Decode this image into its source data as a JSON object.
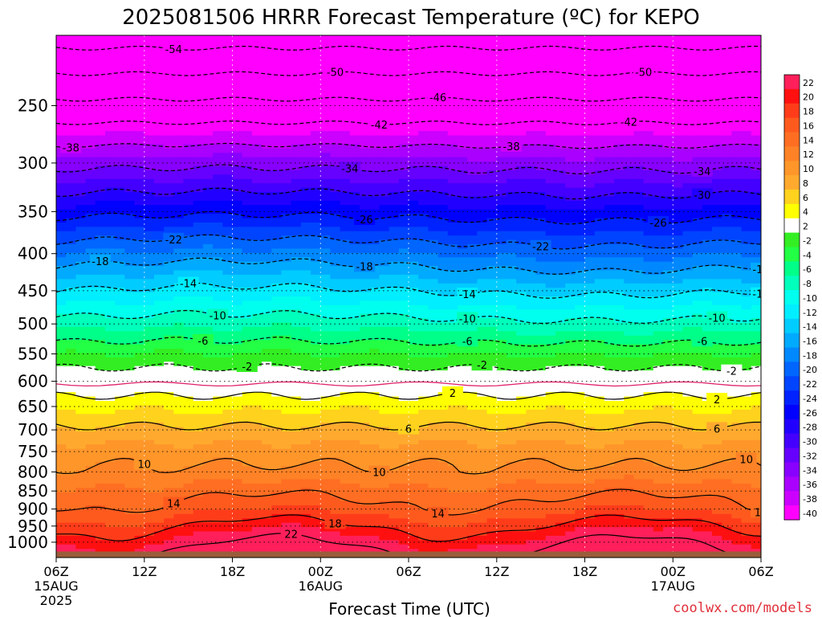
{
  "title": "2025081506 HRRR Forecast Temperature (ºC) for KEPO",
  "xlabel": "Forecast Time (UTC)",
  "credit": "coolwx.com/models",
  "colors": {
    "ground": "#9a5c3a",
    "freezing_line": "#e0206a",
    "dotted_line": "#000000",
    "dashed_grid": "#ffffff"
  },
  "chart_data": {
    "type": "heatmap",
    "title": "2025081506 HRRR Forecast Temperature (ºC) for KEPO",
    "xlabel": "Forecast Time (UTC)",
    "ylabel": "",
    "x_ticks": [
      {
        "label": "06Z",
        "sub": [
          "15AUG",
          "2025"
        ]
      },
      {
        "label": "12Z",
        "sub": []
      },
      {
        "label": "18Z",
        "sub": []
      },
      {
        "label": "00Z",
        "sub": [
          "16AUG"
        ]
      },
      {
        "label": "06Z",
        "sub": []
      },
      {
        "label": "12Z",
        "sub": []
      },
      {
        "label": "18Z",
        "sub": []
      },
      {
        "label": "00Z",
        "sub": [
          "17AUG"
        ]
      },
      {
        "label": "06Z",
        "sub": []
      }
    ],
    "forecast_hours": [
      0,
      6,
      12,
      18,
      24,
      30,
      36,
      42,
      48
    ],
    "y_ticks": [
      250,
      300,
      350,
      400,
      450,
      500,
      550,
      600,
      650,
      700,
      750,
      800,
      850,
      900,
      950,
      1000
    ],
    "ylim": [
      1050,
      200
    ],
    "y_scale": "log",
    "colorbar_labels": [
      22,
      20,
      18,
      16,
      14,
      12,
      10,
      8,
      6,
      4,
      2,
      -2,
      -4,
      -6,
      -8,
      -10,
      -12,
      -14,
      -16,
      -18,
      -20,
      -22,
      -24,
      -26,
      -28,
      -30,
      -32,
      -34,
      -36,
      -38,
      -40
    ],
    "colorbar_levels": [
      {
        "lo": 20,
        "hi": 22,
        "color": "#ff1f5a"
      },
      {
        "lo": 18,
        "hi": 20,
        "color": "#ff1010"
      },
      {
        "lo": 16,
        "hi": 18,
        "color": "#ff3c1a"
      },
      {
        "lo": 14,
        "hi": 16,
        "color": "#ff5a1e"
      },
      {
        "lo": 12,
        "hi": 14,
        "color": "#ff6e22"
      },
      {
        "lo": 10,
        "hi": 12,
        "color": "#ff8226"
      },
      {
        "lo": 8,
        "hi": 10,
        "color": "#ff962a"
      },
      {
        "lo": 6,
        "hi": 8,
        "color": "#ffaa2e"
      },
      {
        "lo": 4,
        "hi": 6,
        "color": "#ffd21e"
      },
      {
        "lo": 2,
        "hi": 4,
        "color": "#ffff00"
      },
      {
        "lo": -2,
        "hi": 2,
        "color": "#ffffff"
      },
      {
        "lo": -4,
        "hi": -2,
        "color": "#33ee22"
      },
      {
        "lo": -6,
        "hi": -4,
        "color": "#22ff44"
      },
      {
        "lo": -8,
        "hi": -6,
        "color": "#00ff88"
      },
      {
        "lo": -10,
        "hi": -8,
        "color": "#00ffbb"
      },
      {
        "lo": -12,
        "hi": -10,
        "color": "#00ffee"
      },
      {
        "lo": -14,
        "hi": -12,
        "color": "#00eeff"
      },
      {
        "lo": -16,
        "hi": -14,
        "color": "#00ccff"
      },
      {
        "lo": -18,
        "hi": -16,
        "color": "#00aaff"
      },
      {
        "lo": -20,
        "hi": -18,
        "color": "#0088ff"
      },
      {
        "lo": -22,
        "hi": -20,
        "color": "#0066ff"
      },
      {
        "lo": -24,
        "hi": -22,
        "color": "#0044ff"
      },
      {
        "lo": -26,
        "hi": -24,
        "color": "#0022ff"
      },
      {
        "lo": -28,
        "hi": -26,
        "color": "#0000ff"
      },
      {
        "lo": -30,
        "hi": -28,
        "color": "#2200ff"
      },
      {
        "lo": -32,
        "hi": -30,
        "color": "#4400ff"
      },
      {
        "lo": -34,
        "hi": -32,
        "color": "#6600ff"
      },
      {
        "lo": -36,
        "hi": -34,
        "color": "#8800ff"
      },
      {
        "lo": -38,
        "hi": -36,
        "color": "#aa00ff"
      },
      {
        "lo": -40,
        "hi": -38,
        "color": "#cc00ff"
      },
      {
        "lo": -80,
        "hi": -40,
        "color": "#ff00ff"
      }
    ],
    "temperature_profile": [
      {
        "p": 1000,
        "t": 21
      },
      {
        "p": 950,
        "t": 18
      },
      {
        "p": 900,
        "t": 15
      },
      {
        "p": 850,
        "t": 13
      },
      {
        "p": 800,
        "t": 10.5
      },
      {
        "p": 750,
        "t": 9
      },
      {
        "p": 700,
        "t": 6.5
      },
      {
        "p": 650,
        "t": 3.5
      },
      {
        "p": 600,
        "t": 0
      },
      {
        "p": 550,
        "t": -4
      },
      {
        "p": 500,
        "t": -9
      },
      {
        "p": 450,
        "t": -14
      },
      {
        "p": 400,
        "t": -20
      },
      {
        "p": 350,
        "t": -27
      },
      {
        "p": 300,
        "t": -35
      },
      {
        "p": 250,
        "t": -45
      },
      {
        "p": 200,
        "t": -56
      }
    ],
    "contours": [
      {
        "label": "-54",
        "style": "dashed",
        "label_at": [
          8
        ]
      },
      {
        "label": "-50",
        "style": "dashed",
        "label_at": [
          19,
          40
        ]
      },
      {
        "label": "-46",
        "style": "dashed",
        "label_at": [
          26
        ]
      },
      {
        "label": "-42",
        "style": "dashed",
        "label_at": [
          22,
          39
        ]
      },
      {
        "label": "-38",
        "style": "dashed",
        "label_at": [
          1,
          31
        ]
      },
      {
        "label": "-34",
        "style": "dashed",
        "label_at": [
          20,
          44
        ]
      },
      {
        "label": "-30",
        "style": "dashed",
        "label_at": [
          44
        ]
      },
      {
        "label": "-26",
        "style": "dashed",
        "label_at": [
          21,
          41
        ]
      },
      {
        "label": "-22",
        "style": "dashed",
        "label_at": [
          8,
          33,
          49
        ]
      },
      {
        "label": "-18",
        "style": "dashed",
        "label_at": [
          3,
          21,
          48
        ]
      },
      {
        "label": "-14",
        "style": "dashed",
        "label_at": [
          9,
          28,
          48
        ]
      },
      {
        "label": "-10",
        "style": "dashed",
        "label_at": [
          11,
          28,
          45
        ]
      },
      {
        "label": "-6",
        "style": "dashed",
        "label_at": [
          10,
          28,
          44
        ]
      },
      {
        "label": "-2",
        "style": "dashed",
        "label_at": [
          13,
          29,
          46
        ]
      },
      {
        "label": "2",
        "style": "solid",
        "label_at": [
          27,
          45
        ]
      },
      {
        "label": "6",
        "style": "solid",
        "label_at": [
          24,
          45
        ]
      },
      {
        "label": "10",
        "style": "solid",
        "label_at": [
          6,
          22,
          47
        ]
      },
      {
        "label": "14",
        "style": "solid",
        "label_at": [
          8,
          26,
          48
        ]
      },
      {
        "label": "18",
        "style": "solid",
        "label_at": [
          19
        ]
      },
      {
        "label": "22",
        "style": "solid",
        "label_at": [
          16
        ]
      }
    ],
    "freezing_level_p": 605,
    "surface_p": 1030,
    "grid": true,
    "legend": "colorbar-right"
  }
}
